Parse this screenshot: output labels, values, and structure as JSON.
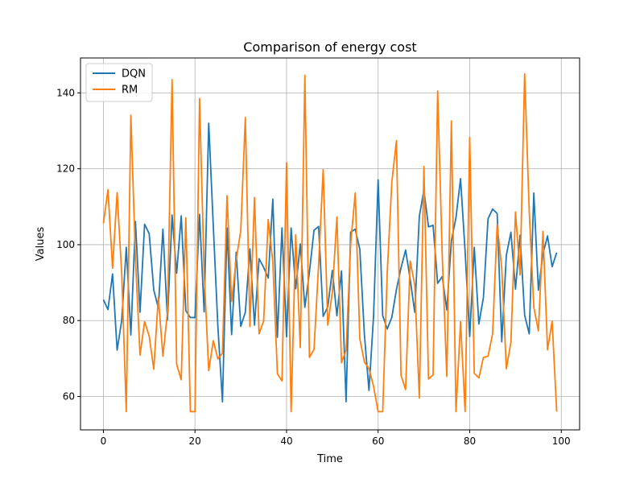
{
  "chart_data": {
    "type": "line",
    "title": "Comparison of energy cost",
    "xlabel": "Time",
    "ylabel": "Values",
    "xlim": [
      -5,
      104
    ],
    "ylim": [
      51.2,
      149.2
    ],
    "x_ticks": [
      0,
      20,
      40,
      60,
      80,
      100
    ],
    "y_ticks": [
      60,
      80,
      100,
      120,
      140
    ],
    "grid": true,
    "legend_position": "top-left",
    "x": [
      0,
      1,
      2,
      3,
      4,
      5,
      6,
      7,
      8,
      9,
      10,
      11,
      12,
      13,
      14,
      15,
      16,
      17,
      18,
      19,
      20,
      21,
      22,
      23,
      24,
      25,
      26,
      27,
      28,
      29,
      30,
      31,
      32,
      33,
      34,
      35,
      36,
      37,
      38,
      39,
      40,
      41,
      42,
      43,
      44,
      45,
      46,
      47,
      48,
      49,
      50,
      51,
      52,
      53,
      54,
      55,
      56,
      57,
      58,
      59,
      60,
      61,
      62,
      63,
      64,
      65,
      66,
      67,
      68,
      69,
      70,
      71,
      72,
      73,
      74,
      75,
      76,
      77,
      78,
      79,
      80,
      81,
      82,
      83,
      84,
      85,
      86,
      87,
      88,
      89,
      90,
      91,
      92,
      93,
      94,
      95,
      96,
      97,
      98,
      99
    ],
    "series": [
      {
        "name": "DQN",
        "color": "#1f77b4",
        "values": [
          85.5,
          82.9,
          92.3,
          72.2,
          80.0,
          99.3,
          76.2,
          106.1,
          82.2,
          105.4,
          102.9,
          88.1,
          83.3,
          104.1,
          80.2,
          107.8,
          92.5,
          107.6,
          82.6,
          80.8,
          80.8,
          108.0,
          82.3,
          132.0,
          105.0,
          78.5,
          58.6,
          104.4,
          76.3,
          98.0,
          78.5,
          82.2,
          98.9,
          78.8,
          96.3,
          94.0,
          91.2,
          112.0,
          75.6,
          104.4,
          75.7,
          104.4,
          88.4,
          100.2,
          83.5,
          92.8,
          103.8,
          104.8,
          81.1,
          83.6,
          93.2,
          81.3,
          93.1,
          58.6,
          103.3,
          104.1,
          98.8,
          76.3,
          61.6,
          81.1,
          117.1,
          81.3,
          77.8,
          80.9,
          88.2,
          93.9,
          98.6,
          90.9,
          82.2,
          107.5,
          114.4,
          104.7,
          105.1,
          89.8,
          91.6,
          82.8,
          101.0,
          107.1,
          117.4,
          98.1,
          75.8,
          99.3,
          79.1,
          86.1,
          106.8,
          109.4,
          108.2,
          74.4,
          97.2,
          103.3,
          88.3,
          102.5,
          81.4,
          76.5,
          113.6,
          88.0,
          97.6,
          102.3,
          94.2,
          97.9
        ]
      },
      {
        "name": "RM",
        "color": "#ff7f0e",
        "values": [
          105.6,
          114.5,
          93.8,
          113.7,
          92.4,
          56.0,
          134.1,
          96.3,
          70.9,
          79.7,
          75.9,
          67.2,
          86.1,
          70.6,
          82.3,
          143.5,
          68.5,
          64.4,
          107.1,
          56.0,
          56.0,
          138.5,
          92.7,
          66.8,
          74.7,
          69.9,
          71.4,
          112.9,
          85.0,
          96.0,
          103.7,
          133.5,
          78.4,
          112.4,
          76.5,
          79.9,
          106.6,
          95.5,
          66.0,
          64.1,
          121.6,
          56.0,
          102.6,
          72.9,
          144.6,
          70.3,
          72.4,
          94.7,
          119.8,
          78.8,
          87.5,
          107.3,
          68.9,
          72.2,
          100.2,
          113.6,
          75.2,
          69.1,
          67.3,
          62.7,
          56.0,
          56.0,
          92.9,
          116.6,
          127.4,
          65.6,
          61.8,
          95.7,
          89.3,
          59.6,
          120.6,
          64.6,
          65.7,
          140.5,
          97.2,
          65.3,
          132.6,
          56.0,
          79.7,
          56.0,
          128.3,
          66.1,
          64.9,
          70.3,
          70.6,
          76.5,
          105.3,
          93.8,
          67.3,
          74.3,
          108.6,
          92.0,
          145.0,
          108.8,
          83.5,
          77.3,
          103.5,
          72.3,
          79.8,
          56.0
        ]
      }
    ]
  }
}
